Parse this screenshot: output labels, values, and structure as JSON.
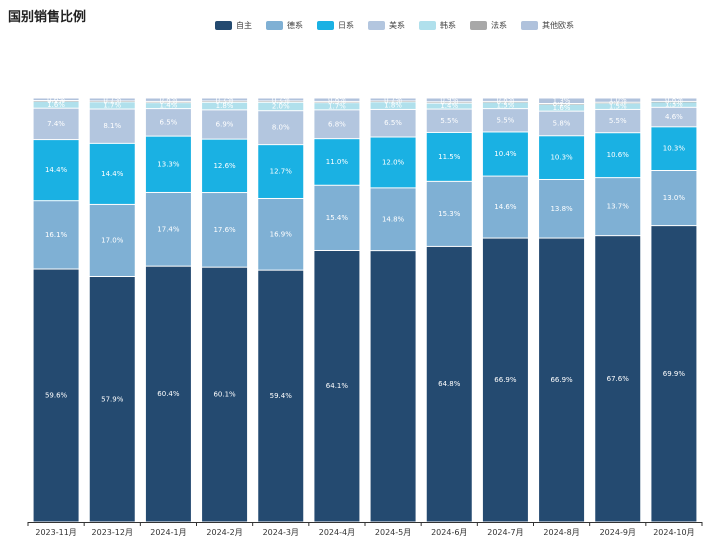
{
  "chart_data": {
    "type": "bar",
    "stacked": true,
    "title": "国别销售比例",
    "categories": [
      "2023-11月",
      "2023-12月",
      "2024-1月",
      "2024-2月",
      "2024-3月",
      "2024-4月",
      "2024-5月",
      "2024-6月",
      "2024-7月",
      "2024-8月",
      "2024-9月",
      "2024-10月"
    ],
    "series": [
      {
        "name": "自主",
        "color": "#244a70",
        "values": [
          59.6,
          57.9,
          60.4,
          60.1,
          59.4,
          64.1,
          64.0,
          64.8,
          66.9,
          66.9,
          67.6,
          69.9
        ]
      },
      {
        "name": "德系",
        "color": "#7fb0d4",
        "values": [
          16.1,
          17.0,
          17.4,
          17.6,
          16.9,
          15.4,
          14.8,
          15.3,
          14.6,
          13.8,
          13.7,
          13.0
        ]
      },
      {
        "name": "日系",
        "color": "#1ab1e3",
        "values": [
          14.4,
          14.4,
          13.3,
          12.6,
          12.7,
          11.0,
          12.0,
          11.5,
          10.4,
          10.3,
          10.6,
          10.3
        ]
      },
      {
        "name": "美系",
        "color": "#b3c6df",
        "values": [
          7.4,
          8.1,
          6.5,
          6.9,
          8.0,
          6.8,
          6.5,
          5.5,
          5.5,
          5.8,
          5.5,
          4.6
        ]
      },
      {
        "name": "韩系",
        "color": "#b0e0ec",
        "values": [
          1.6,
          1.7,
          1.4,
          1.8,
          2.0,
          1.7,
          1.8,
          1.4,
          1.5,
          1.6,
          1.5,
          1.3
        ]
      },
      {
        "name": "法系",
        "color": "#a8a8a8",
        "values": [
          0.2,
          0.2,
          0.3,
          0.3,
          0.3,
          0.3,
          0.2,
          0.3,
          0.2,
          0.2,
          0.2,
          0.1
        ]
      },
      {
        "name": "其他欧系",
        "color": "#b0c2dc",
        "values": [
          0.6,
          0.7,
          0.8,
          0.7,
          0.7,
          0.8,
          0.7,
          0.9,
          0.8,
          1.3,
          1.0,
          0.8
        ]
      }
    ],
    "data_labels_on_bars": [
      [
        "59.6%",
        "16.1%",
        "14.4%",
        "7.4%",
        "1.6%",
        "0.2%",
        "0.6%"
      ],
      [
        "57.9%",
        "17.0%",
        "14.4%",
        "8.1%",
        "1.7%",
        "0.2%",
        "0.7%"
      ],
      [
        "60.4%",
        "17.4%",
        "13.3%",
        "6.5%",
        "1.4%",
        "0.3%",
        "0.8%"
      ],
      [
        "60.1%",
        "17.6%",
        "12.6%",
        "6.9%",
        "1.8%",
        "0.3%",
        "0.7%"
      ],
      [
        "59.4%",
        "16.9%",
        "12.7%",
        "8.0%",
        "2.0%",
        "0.3%",
        "0.7%"
      ],
      [
        "64.1%",
        "15.4%",
        "11.0%",
        "6.8%",
        "1.7%",
        "0.3%",
        "0.8%"
      ],
      [
        "",
        "14.8%",
        "12.0%",
        "6.5%",
        "1.8%",
        "0.2%",
        "0.7%"
      ],
      [
        "64.8%",
        "15.3%",
        "11.5%",
        "5.5%",
        "1.4%",
        "0.3%",
        "0.9%"
      ],
      [
        "66.9%",
        "14.6%",
        "10.4%",
        "5.5%",
        "1.5%",
        "0.2%",
        "0.8%"
      ],
      [
        "66.9%",
        "13.8%",
        "10.3%",
        "5.8%",
        "1.6%",
        "0.2%",
        "1.3%"
      ],
      [
        "67.6%",
        "13.7%",
        "10.6%",
        "5.5%",
        "1.5%",
        "0.2%",
        "1.0%"
      ],
      [
        "69.9%",
        "13.0%",
        "10.3%",
        "4.6%",
        "1.3%",
        "0.1%",
        "0.8%"
      ]
    ],
    "ylim": [
      0,
      100
    ],
    "grid": false,
    "legend_position": "top-center"
  }
}
